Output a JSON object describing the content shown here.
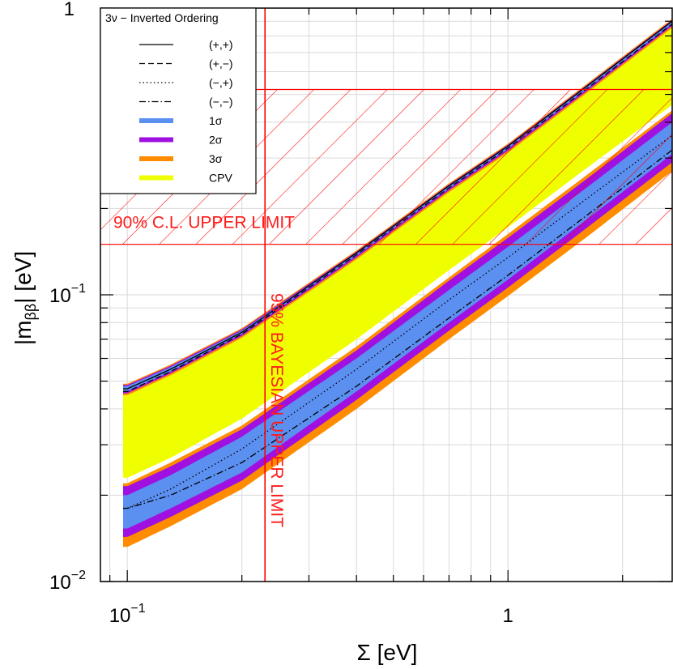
{
  "chart_data": {
    "type": "area",
    "x_scale": "log",
    "y_scale": "log",
    "xlim": [
      0.085,
      2.7
    ],
    "ylim": [
      0.01,
      1
    ],
    "xlabel": "Σ    [eV]",
    "ylabel": "|m",
    "ylabel_sub": "ββ",
    "ylabel_suffix": "|    [eV]",
    "x_ticks": [
      {
        "value": 0.1,
        "base": "10",
        "exp": "−1"
      },
      {
        "value": 1,
        "base": "1",
        "exp": ""
      }
    ],
    "y_ticks": [
      {
        "value": 0.01,
        "base": "10",
        "exp": "−2"
      },
      {
        "value": 0.1,
        "base": "10",
        "exp": "−1"
      },
      {
        "value": 1,
        "base": "1",
        "exp": ""
      }
    ],
    "grid": true,
    "legend_position": "top-left",
    "legend_title": "3ν − Inverted Ordering",
    "legend": [
      {
        "label": "(+,+)",
        "kind": "line",
        "dash": "solid"
      },
      {
        "label": "(+,−)",
        "kind": "line",
        "dash": "dashed"
      },
      {
        "label": "(−,+)",
        "kind": "line",
        "dash": "dotted"
      },
      {
        "label": "(−,−)",
        "kind": "line",
        "dash": "dashdot"
      },
      {
        "label": "1σ",
        "kind": "band",
        "color": "#5b8ff0"
      },
      {
        "label": "2σ",
        "kind": "band",
        "color": "#a010e0"
      },
      {
        "label": "3σ",
        "kind": "band",
        "color": "#ff8c00"
      },
      {
        "label": "CPV",
        "kind": "band",
        "color": "#f0ff00"
      }
    ],
    "limits": [
      {
        "label": "90% C.L. UPPER LIMIT",
        "orientation": "horizontal",
        "y_range": [
          0.15,
          0.52
        ],
        "color": "#ff0000"
      },
      {
        "label": "95% BAYESIAN UPPER LIMIT",
        "orientation": "vertical",
        "x": 0.23,
        "color": "#ff0000"
      }
    ],
    "model": {
      "x_min": 0.0975,
      "upper_curve": {
        "x": [
          0.0975,
          0.1,
          0.13,
          0.2,
          0.4,
          0.7,
          1.0,
          1.6,
          2.7
        ],
        "y": [
          0.048,
          0.048,
          0.056,
          0.075,
          0.14,
          0.24,
          0.33,
          0.53,
          0.9
        ]
      },
      "series": [
        {
          "label": "(+,+)",
          "dash": "solid",
          "x": [
            0.0975,
            0.1,
            0.13,
            0.2,
            0.4,
            0.7,
            1.0,
            1.6,
            2.7
          ],
          "y": [
            0.047,
            0.047,
            0.055,
            0.074,
            0.14,
            0.24,
            0.33,
            0.53,
            0.9
          ]
        },
        {
          "label": "(+,−)",
          "dash": "dashed",
          "x": [
            0.0975,
            0.1,
            0.13,
            0.2,
            0.4,
            0.7,
            1.0,
            1.6,
            2.7
          ],
          "y": [
            0.046,
            0.046,
            0.054,
            0.073,
            0.138,
            0.236,
            0.325,
            0.52,
            0.88
          ]
        },
        {
          "label": "(−,+)",
          "dash": "dotted",
          "x": [
            0.0975,
            0.1,
            0.13,
            0.2,
            0.4,
            0.7,
            1.0,
            1.6,
            2.7
          ],
          "y": [
            0.018,
            0.018,
            0.021,
            0.029,
            0.055,
            0.096,
            0.135,
            0.215,
            0.36
          ]
        },
        {
          "label": "(−,−)",
          "dash": "dashdot",
          "x": [
            0.0975,
            0.1,
            0.13,
            0.2,
            0.4,
            0.7,
            1.0,
            1.6,
            2.7
          ],
          "y": [
            0.018,
            0.018,
            0.02,
            0.026,
            0.048,
            0.083,
            0.117,
            0.188,
            0.32
          ]
        }
      ],
      "bands": [
        {
          "label": "CPV",
          "color": "#f0ff00",
          "upper": [
            0.048,
            0.048,
            0.056,
            0.075,
            0.14,
            0.24,
            0.33,
            0.53,
            0.9
          ],
          "lower": [
            0.023,
            0.023,
            0.027,
            0.037,
            0.07,
            0.122,
            0.172,
            0.275,
            0.46
          ]
        },
        {
          "label": "3σ",
          "color": "#ff8c00",
          "upper": [
            0.022,
            0.022,
            0.026,
            0.035,
            0.066,
            0.115,
            0.163,
            0.26,
            0.44
          ],
          "lower": [
            0.0132,
            0.0132,
            0.0156,
            0.021,
            0.04,
            0.07,
            0.099,
            0.158,
            0.27
          ]
        },
        {
          "label": "2σ",
          "color": "#a010e0",
          "upper": [
            0.0215,
            0.0215,
            0.0252,
            0.034,
            0.064,
            0.112,
            0.158,
            0.252,
            0.43
          ],
          "lower": [
            0.0143,
            0.0143,
            0.0168,
            0.0225,
            0.043,
            0.075,
            0.106,
            0.17,
            0.29
          ]
        },
        {
          "label": "1σ",
          "color": "#5b8ff0",
          "upper": [
            0.02,
            0.02,
            0.0235,
            0.032,
            0.06,
            0.104,
            0.147,
            0.235,
            0.4
          ],
          "lower": [
            0.0153,
            0.0153,
            0.018,
            0.024,
            0.046,
            0.08,
            0.113,
            0.182,
            0.31
          ]
        }
      ],
      "upper_band_1sigma": {
        "color": "#5b8ff0",
        "upper": [
          0.048,
          0.048,
          0.056,
          0.075,
          0.14,
          0.24,
          0.33,
          0.53,
          0.9
        ],
        "lower": [
          0.046,
          0.046,
          0.054,
          0.073,
          0.137,
          0.235,
          0.323,
          0.518,
          0.88
        ]
      }
    }
  }
}
